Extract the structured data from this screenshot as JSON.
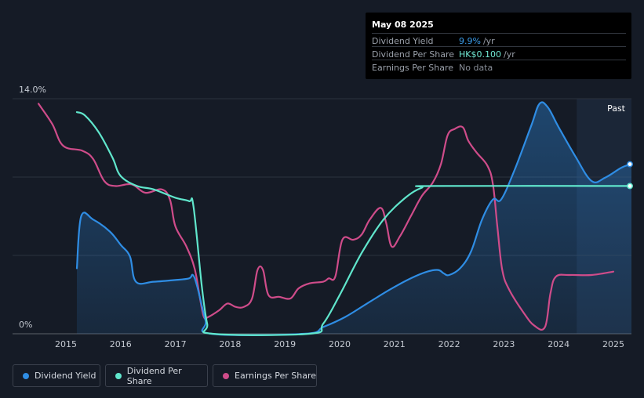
{
  "tooltip": {
    "date": "May 08 2025",
    "rows": [
      {
        "label": "Dividend Yield",
        "value": "9.9%",
        "unit": "/yr",
        "color": "#3a9be8"
      },
      {
        "label": "Dividend Per Share",
        "value": "HK$0.100",
        "unit": "/yr",
        "color": "#72ead5"
      },
      {
        "label": "Earnings Per Share",
        "value": "No data",
        "unit": "",
        "color": "#888e98"
      }
    ]
  },
  "past_label": "Past",
  "legend": [
    {
      "label": "Dividend Yield",
      "color": "#2f8de4"
    },
    {
      "label": "Dividend Per Share",
      "color": "#60e6cc"
    },
    {
      "label": "Earnings Per Share",
      "color": "#cf4c8a"
    }
  ],
  "chart_data": {
    "type": "line",
    "y_tick_labels": [
      "14.0%",
      "0%"
    ],
    "ylim": [
      0,
      14
    ],
    "xlim": [
      2014.5,
      2025.33
    ],
    "x_ticks": [
      2015,
      2016,
      2017,
      2018,
      2019,
      2020,
      2021,
      2022,
      2023,
      2024,
      2025
    ],
    "grid": true,
    "legend_position": "bottom-left",
    "forecast_start": 2024.33,
    "series": [
      {
        "name": "Dividend Yield",
        "color": "#2f8de4",
        "fill": true,
        "points": [
          [
            2015.2,
            3.9
          ],
          [
            2015.28,
            7.0
          ],
          [
            2015.5,
            6.8
          ],
          [
            2015.8,
            6.1
          ],
          [
            2016.0,
            5.3
          ],
          [
            2016.17,
            4.6
          ],
          [
            2016.28,
            3.1
          ],
          [
            2016.6,
            3.1
          ],
          [
            2017.0,
            3.2
          ],
          [
            2017.25,
            3.3
          ],
          [
            2017.32,
            3.5
          ],
          [
            2017.4,
            2.8
          ],
          [
            2017.55,
            0.8
          ],
          [
            2017.65,
            0.0
          ],
          [
            2019.35,
            0.0
          ],
          [
            2019.7,
            0.4
          ],
          [
            2020.1,
            1.0
          ],
          [
            2020.5,
            1.8
          ],
          [
            2020.9,
            2.6
          ],
          [
            2021.3,
            3.3
          ],
          [
            2021.6,
            3.7
          ],
          [
            2021.8,
            3.8
          ],
          [
            2021.9,
            3.6
          ],
          [
            2022.0,
            3.5
          ],
          [
            2022.2,
            3.9
          ],
          [
            2022.4,
            4.9
          ],
          [
            2022.6,
            6.8
          ],
          [
            2022.8,
            8.0
          ],
          [
            2022.95,
            8.0
          ],
          [
            2023.2,
            9.8
          ],
          [
            2023.5,
            12.4
          ],
          [
            2023.65,
            13.7
          ],
          [
            2023.8,
            13.5
          ],
          [
            2024.0,
            12.3
          ],
          [
            2024.3,
            10.6
          ],
          [
            2024.6,
            9.1
          ],
          [
            2024.85,
            9.3
          ],
          [
            2025.15,
            9.9
          ],
          [
            2025.33,
            10.1
          ]
        ]
      },
      {
        "name": "Dividend Per Share",
        "color": "#60e6cc",
        "fill": false,
        "points": [
          [
            2015.2,
            13.2
          ],
          [
            2015.35,
            13.0
          ],
          [
            2015.6,
            12.0
          ],
          [
            2015.85,
            10.5
          ],
          [
            2016.0,
            9.4
          ],
          [
            2016.3,
            8.8
          ],
          [
            2016.6,
            8.6
          ],
          [
            2017.0,
            8.1
          ],
          [
            2017.25,
            7.9
          ],
          [
            2017.33,
            7.6
          ],
          [
            2017.48,
            2.9
          ],
          [
            2017.58,
            0.6
          ],
          [
            2017.68,
            0.0
          ],
          [
            2019.45,
            0.0
          ],
          [
            2019.7,
            0.6
          ],
          [
            2020.0,
            2.3
          ],
          [
            2020.4,
            4.8
          ],
          [
            2020.8,
            6.8
          ],
          [
            2021.2,
            8.1
          ],
          [
            2021.5,
            8.7
          ],
          [
            2021.75,
            8.8
          ],
          [
            2025.33,
            8.8
          ]
        ]
      },
      {
        "name": "Earnings Per Share",
        "color": "#cf4c8a",
        "fill": false,
        "points": [
          [
            2014.5,
            13.7
          ],
          [
            2014.75,
            12.5
          ],
          [
            2014.95,
            11.2
          ],
          [
            2015.3,
            10.9
          ],
          [
            2015.5,
            10.4
          ],
          [
            2015.7,
            9.1
          ],
          [
            2015.9,
            8.8
          ],
          [
            2016.2,
            8.9
          ],
          [
            2016.45,
            8.4
          ],
          [
            2016.75,
            8.6
          ],
          [
            2016.9,
            8.0
          ],
          [
            2017.0,
            6.4
          ],
          [
            2017.2,
            5.2
          ],
          [
            2017.35,
            3.9
          ],
          [
            2017.45,
            2.1
          ],
          [
            2017.52,
            1.0
          ],
          [
            2017.6,
            1.0
          ],
          [
            2017.8,
            1.4
          ],
          [
            2017.95,
            1.8
          ],
          [
            2018.1,
            1.6
          ],
          [
            2018.25,
            1.6
          ],
          [
            2018.4,
            2.1
          ],
          [
            2018.5,
            3.8
          ],
          [
            2018.6,
            3.8
          ],
          [
            2018.7,
            2.3
          ],
          [
            2018.9,
            2.2
          ],
          [
            2019.1,
            2.1
          ],
          [
            2019.25,
            2.7
          ],
          [
            2019.45,
            3.0
          ],
          [
            2019.7,
            3.1
          ],
          [
            2019.8,
            3.3
          ],
          [
            2019.92,
            3.4
          ],
          [
            2020.05,
            5.6
          ],
          [
            2020.25,
            5.6
          ],
          [
            2020.4,
            5.9
          ],
          [
            2020.55,
            6.8
          ],
          [
            2020.75,
            7.5
          ],
          [
            2020.85,
            6.6
          ],
          [
            2020.95,
            5.2
          ],
          [
            2021.1,
            5.8
          ],
          [
            2021.3,
            7.0
          ],
          [
            2021.5,
            8.2
          ],
          [
            2021.7,
            9.0
          ],
          [
            2021.85,
            10.1
          ],
          [
            2021.97,
            11.8
          ],
          [
            2022.1,
            12.2
          ],
          [
            2022.25,
            12.3
          ],
          [
            2022.35,
            11.5
          ],
          [
            2022.5,
            10.8
          ],
          [
            2022.7,
            10.0
          ],
          [
            2022.8,
            8.9
          ],
          [
            2022.88,
            6.4
          ],
          [
            2022.97,
            3.8
          ],
          [
            2023.1,
            2.6
          ],
          [
            2023.35,
            1.3
          ],
          [
            2023.55,
            0.5
          ],
          [
            2023.75,
            0.4
          ],
          [
            2023.85,
            2.4
          ],
          [
            2023.95,
            3.4
          ],
          [
            2024.2,
            3.5
          ],
          [
            2024.6,
            3.5
          ],
          [
            2025.0,
            3.7
          ]
        ]
      }
    ]
  }
}
